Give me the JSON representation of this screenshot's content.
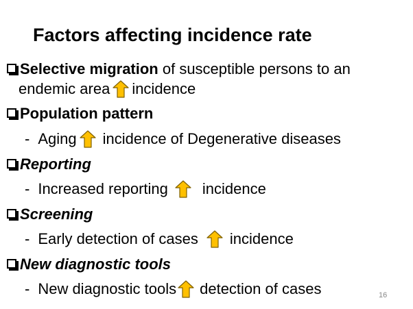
{
  "slide": {
    "title": "Factors affecting incidence rate",
    "page_number": "16",
    "arrow_color": "#ffc000",
    "items": [
      {
        "heading": "Selective migration",
        "rest": " of susceptible persons to an",
        "cont_before": "endemic area",
        "cont_after": "incidence"
      },
      {
        "heading": "Population pattern",
        "sub_dash": "-",
        "sub_before": "Aging",
        "sub_after": "incidence of Degenerative diseases"
      },
      {
        "heading": "Reporting",
        "sub_dash": "-",
        "sub_before": "Increased reporting",
        "sub_after": "incidence"
      },
      {
        "heading": "Screening",
        "sub_dash": "-",
        "sub_before": "Early detection of cases",
        "sub_after": "incidence"
      },
      {
        "heading": "New diagnostic tools",
        "sub_dash": "-",
        "sub_before": "New diagnostic tools",
        "sub_after": "detection of cases"
      }
    ]
  }
}
